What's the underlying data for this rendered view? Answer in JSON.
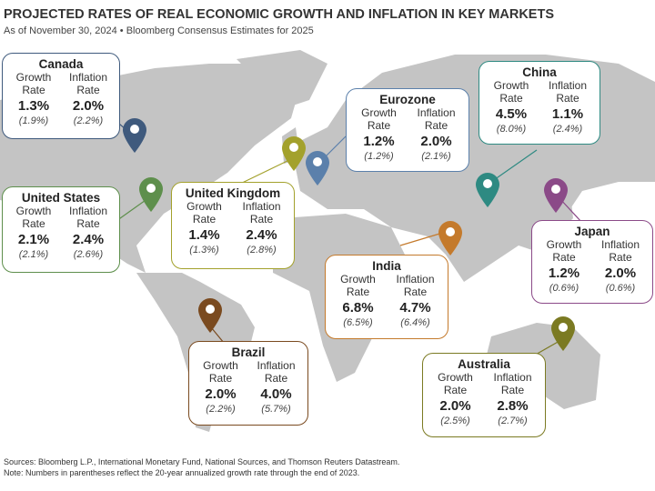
{
  "header": {
    "title": "PROJECTED RATES OF REAL ECONOMIC GROWTH AND INFLATION IN KEY MARKETS",
    "subtitle": "As of November 30, 2024 • Bloomberg Consensus Estimates for 2025"
  },
  "labels": {
    "growth": "Growth",
    "inflation": "Inflation",
    "rate": "Rate"
  },
  "markets": [
    {
      "name": "Canada",
      "growth": "1.3%",
      "growth_hist": "(1.9%)",
      "inflation": "2.0%",
      "inflation_hist": "(2.2%)",
      "color": "#3f5a7d"
    },
    {
      "name": "United States",
      "growth": "2.1%",
      "growth_hist": "(2.1%)",
      "inflation": "2.4%",
      "inflation_hist": "(2.6%)",
      "color": "#5e8f4c"
    },
    {
      "name": "United Kingdom",
      "growth": "1.4%",
      "growth_hist": "(1.3%)",
      "inflation": "2.4%",
      "inflation_hist": "(2.8%)",
      "color": "#a3a12c"
    },
    {
      "name": "Eurozone",
      "growth": "1.2%",
      "growth_hist": "(1.2%)",
      "inflation": "2.0%",
      "inflation_hist": "(2.1%)",
      "color": "#5b80ab"
    },
    {
      "name": "China",
      "growth": "4.5%",
      "growth_hist": "(8.0%)",
      "inflation": "1.1%",
      "inflation_hist": "(2.4%)",
      "color": "#2e8a82"
    },
    {
      "name": "Japan",
      "growth": "1.2%",
      "growth_hist": "(0.6%)",
      "inflation": "2.0%",
      "inflation_hist": "(0.6%)",
      "color": "#8b4a88"
    },
    {
      "name": "India",
      "growth": "6.8%",
      "growth_hist": "(6.5%)",
      "inflation": "4.7%",
      "inflation_hist": "(6.4%)",
      "color": "#c47a2c"
    },
    {
      "name": "Brazil",
      "growth": "2.0%",
      "growth_hist": "(2.2%)",
      "inflation": "4.0%",
      "inflation_hist": "(5.7%)",
      "color": "#7a4a1f"
    },
    {
      "name": "Australia",
      "growth": "2.0%",
      "growth_hist": "(2.5%)",
      "inflation": "2.8%",
      "inflation_hist": "(2.7%)",
      "color": "#7b7a22"
    }
  ],
  "footer": {
    "sources": "Sources: Bloomberg L.P., International Monetary Fund, National Sources, and Thomson Reuters Datastream.",
    "note": "Note: Numbers in parentheses reflect the 20-year annualized growth rate through the end of 2023."
  }
}
